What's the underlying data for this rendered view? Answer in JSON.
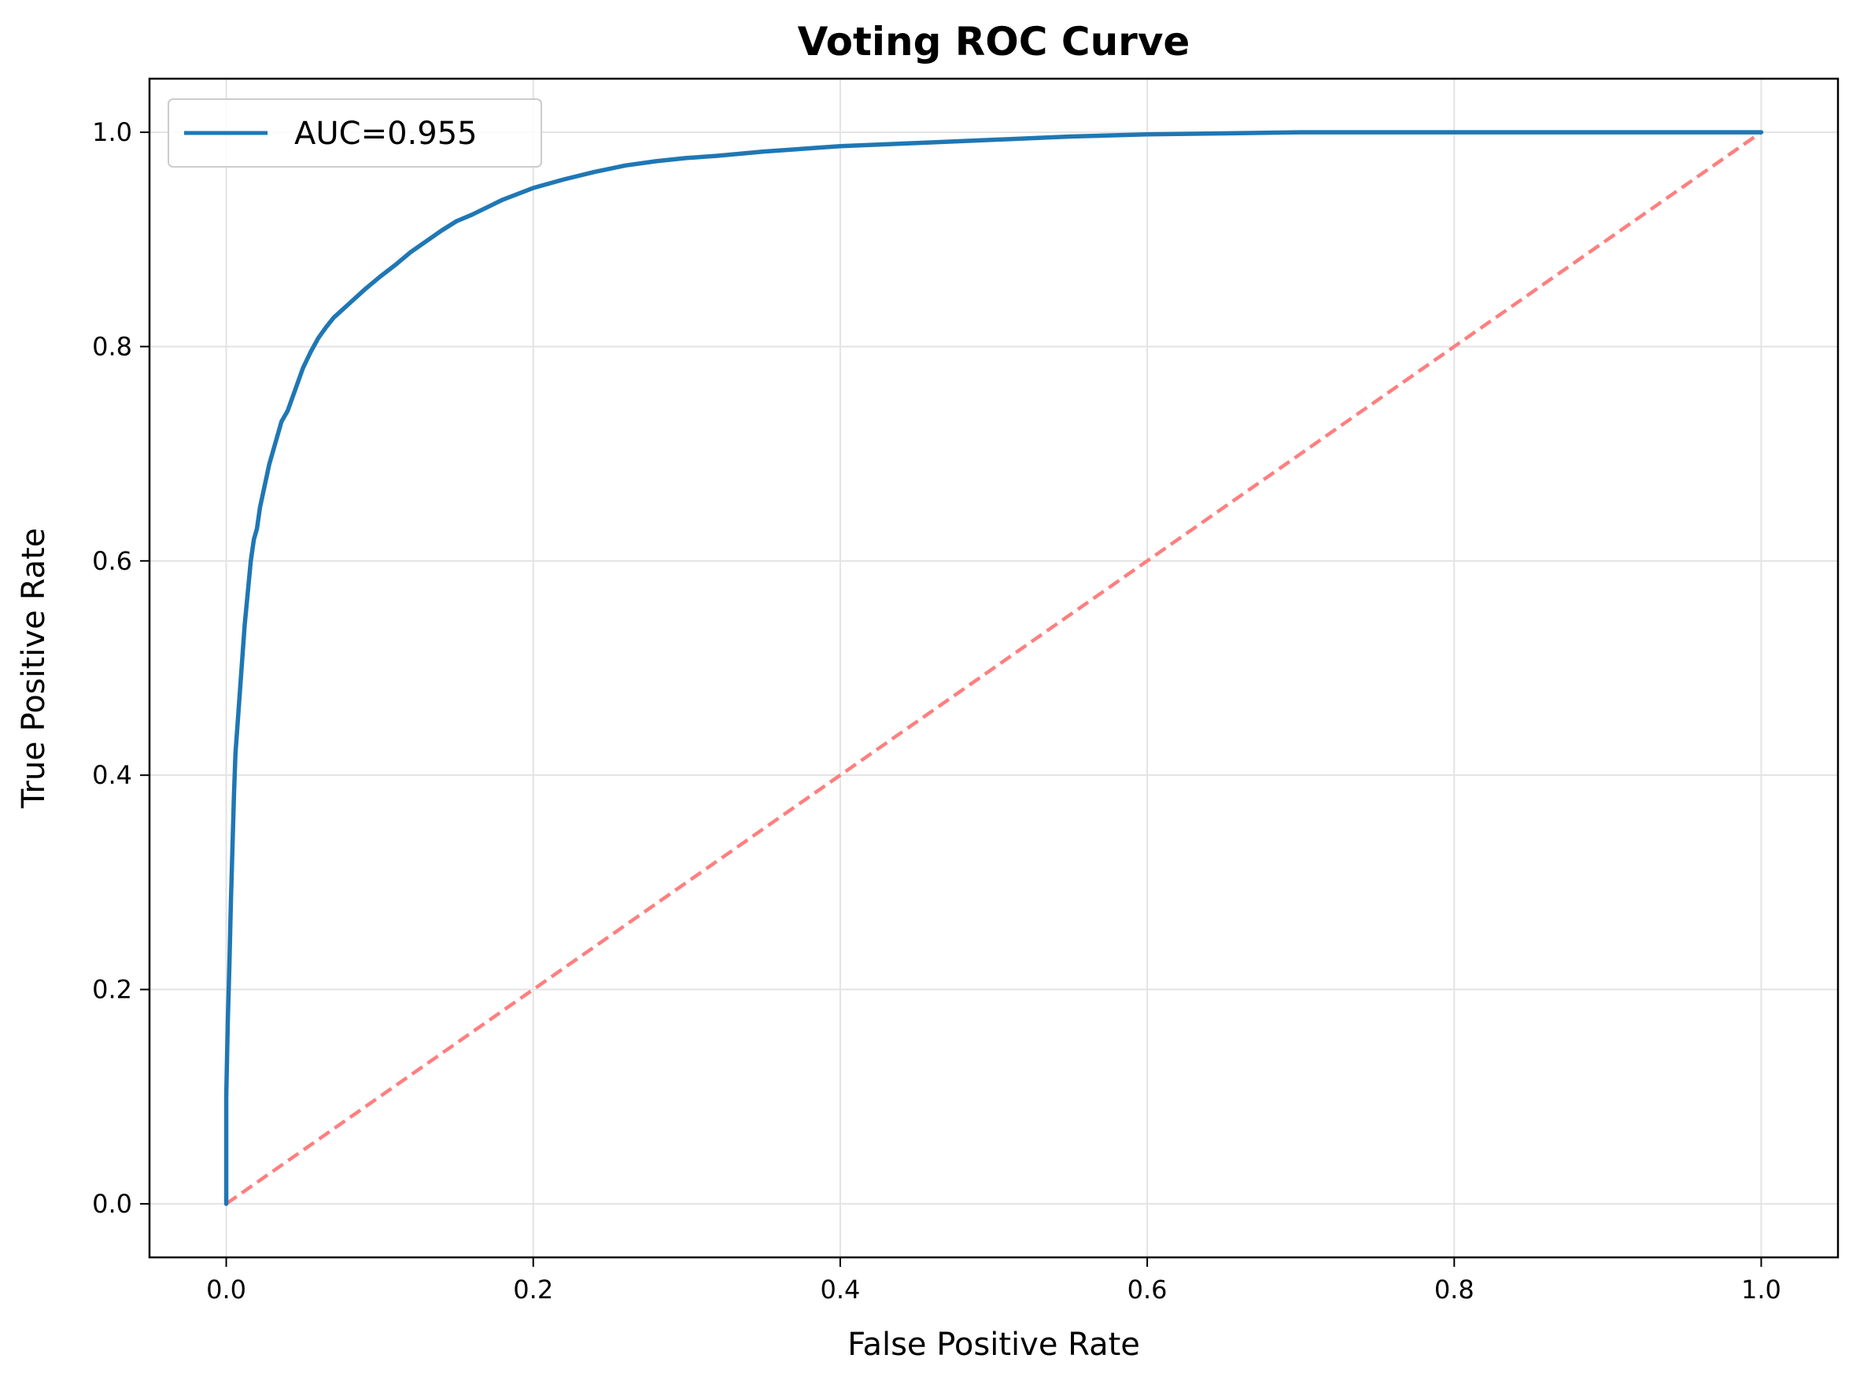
{
  "chart_data": {
    "type": "line",
    "title": "Voting ROC Curve",
    "xlabel": "False Positive Rate",
    "ylabel": "True Positive Rate",
    "xlim": [
      -0.05,
      1.05
    ],
    "ylim": [
      -0.05,
      1.05
    ],
    "xticks": [
      0.0,
      0.2,
      0.4,
      0.6,
      0.8,
      1.0
    ],
    "yticks": [
      0.0,
      0.2,
      0.4,
      0.6,
      0.8,
      1.0
    ],
    "xtick_labels": [
      "0.0",
      "0.2",
      "0.4",
      "0.6",
      "0.8",
      "1.0"
    ],
    "ytick_labels": [
      "0.0",
      "0.2",
      "0.4",
      "0.6",
      "0.8",
      "1.0"
    ],
    "grid": true,
    "legend_position": "top-left",
    "series": [
      {
        "name": "AUC=0.955",
        "color": "#1f77b4",
        "style": "solid",
        "x": [
          0.0,
          0.0,
          0.001,
          0.002,
          0.003,
          0.004,
          0.005,
          0.006,
          0.008,
          0.01,
          0.012,
          0.014,
          0.016,
          0.018,
          0.02,
          0.022,
          0.025,
          0.028,
          0.032,
          0.036,
          0.04,
          0.045,
          0.05,
          0.055,
          0.06,
          0.065,
          0.07,
          0.08,
          0.09,
          0.1,
          0.11,
          0.12,
          0.13,
          0.14,
          0.15,
          0.16,
          0.17,
          0.18,
          0.2,
          0.22,
          0.24,
          0.26,
          0.28,
          0.3,
          0.32,
          0.35,
          0.38,
          0.4,
          0.45,
          0.5,
          0.55,
          0.6,
          0.65,
          0.7,
          0.8,
          0.9,
          1.0
        ],
        "y": [
          0.0,
          0.1,
          0.17,
          0.22,
          0.28,
          0.33,
          0.38,
          0.42,
          0.46,
          0.5,
          0.54,
          0.57,
          0.6,
          0.62,
          0.63,
          0.65,
          0.67,
          0.69,
          0.71,
          0.73,
          0.74,
          0.76,
          0.78,
          0.795,
          0.808,
          0.818,
          0.827,
          0.84,
          0.853,
          0.865,
          0.876,
          0.888,
          0.898,
          0.908,
          0.917,
          0.923,
          0.93,
          0.937,
          0.948,
          0.956,
          0.963,
          0.969,
          0.973,
          0.976,
          0.978,
          0.982,
          0.985,
          0.987,
          0.99,
          0.993,
          0.996,
          0.998,
          0.999,
          1.0,
          1.0,
          1.0,
          1.0
        ]
      },
      {
        "name": "",
        "color": "#ff7f7f",
        "style": "dashed",
        "x": [
          0.0,
          1.0
        ],
        "y": [
          0.0,
          1.0
        ]
      }
    ]
  }
}
